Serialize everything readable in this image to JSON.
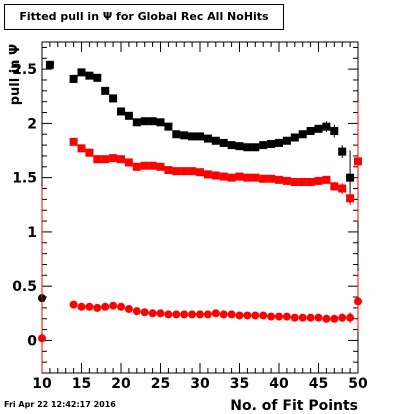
{
  "header": {
    "title": "Fitted pull in  Ψ  for Global Rec All NoHits"
  },
  "footer": {
    "timestamp": "Fri Apr 22 12:42:17 2016"
  },
  "chart_data": {
    "type": "scatter",
    "title": "Fitted pull in  Ψ  for Global Rec All NoHits",
    "xlabel": "No. of Fit Points",
    "ylabel": "pull in Ψ",
    "xlim": [
      10,
      50
    ],
    "ylim": [
      -0.3,
      2.75
    ],
    "xticks": [
      "10",
      "15",
      "20",
      "25",
      "30",
      "35",
      "40",
      "45",
      "50"
    ],
    "yticks": [
      "0",
      "0.5",
      "1",
      "1.5",
      "2",
      "2.5"
    ],
    "grid": false,
    "legend": "none",
    "series": [
      {
        "marker": "square",
        "color": "#000000",
        "points": [
          {
            "x": 11,
            "y": 2.54,
            "err": 0.03
          },
          {
            "x": 14,
            "y": 2.41,
            "err": 0.03
          },
          {
            "x": 15,
            "y": 2.47,
            "err": 0.03
          },
          {
            "x": 16,
            "y": 2.44,
            "err": 0.03
          },
          {
            "x": 17,
            "y": 2.42,
            "err": 0.03
          },
          {
            "x": 18,
            "y": 2.3,
            "err": 0.03
          },
          {
            "x": 19,
            "y": 2.23,
            "err": 0.03
          },
          {
            "x": 20,
            "y": 2.11,
            "err": 0.03
          },
          {
            "x": 21,
            "y": 2.07,
            "err": 0.03
          },
          {
            "x": 22,
            "y": 2.01,
            "err": 0.03
          },
          {
            "x": 23,
            "y": 2.02,
            "err": 0.03
          },
          {
            "x": 24,
            "y": 2.02,
            "err": 0.03
          },
          {
            "x": 25,
            "y": 2.01,
            "err": 0.03
          },
          {
            "x": 26,
            "y": 1.97,
            "err": 0.03
          },
          {
            "x": 27,
            "y": 1.9,
            "err": 0.03
          },
          {
            "x": 28,
            "y": 1.89,
            "err": 0.03
          },
          {
            "x": 29,
            "y": 1.88,
            "err": 0.03
          },
          {
            "x": 30,
            "y": 1.88,
            "err": 0.03
          },
          {
            "x": 31,
            "y": 1.86,
            "err": 0.03
          },
          {
            "x": 32,
            "y": 1.84,
            "err": 0.03
          },
          {
            "x": 33,
            "y": 1.82,
            "err": 0.03
          },
          {
            "x": 34,
            "y": 1.8,
            "err": 0.03
          },
          {
            "x": 35,
            "y": 1.79,
            "err": 0.03
          },
          {
            "x": 36,
            "y": 1.78,
            "err": 0.03
          },
          {
            "x": 37,
            "y": 1.78,
            "err": 0.03
          },
          {
            "x": 38,
            "y": 1.8,
            "err": 0.03
          },
          {
            "x": 39,
            "y": 1.81,
            "err": 0.03
          },
          {
            "x": 40,
            "y": 1.82,
            "err": 0.03
          },
          {
            "x": 41,
            "y": 1.84,
            "err": 0.03
          },
          {
            "x": 42,
            "y": 1.87,
            "err": 0.03
          },
          {
            "x": 43,
            "y": 1.9,
            "err": 0.03
          },
          {
            "x": 44,
            "y": 1.93,
            "err": 0.03
          },
          {
            "x": 45,
            "y": 1.95,
            "err": 0.03
          },
          {
            "x": 46,
            "y": 1.97,
            "err": 0.05
          },
          {
            "x": 47,
            "y": 1.93,
            "err": 0.06
          },
          {
            "x": 48,
            "y": 1.74,
            "err": 0.06
          },
          {
            "x": 49,
            "y": 1.5,
            "err": 0.25
          }
        ]
      },
      {
        "marker": "square",
        "color": "#ff0000",
        "points": [
          {
            "x": 14,
            "y": 1.83,
            "err": 0.02
          },
          {
            "x": 15,
            "y": 1.77,
            "err": 0.02
          },
          {
            "x": 16,
            "y": 1.73,
            "err": 0.02
          },
          {
            "x": 17,
            "y": 1.67,
            "err": 0.02
          },
          {
            "x": 18,
            "y": 1.67,
            "err": 0.02
          },
          {
            "x": 19,
            "y": 1.68,
            "err": 0.02
          },
          {
            "x": 20,
            "y": 1.67,
            "err": 0.02
          },
          {
            "x": 21,
            "y": 1.64,
            "err": 0.02
          },
          {
            "x": 22,
            "y": 1.6,
            "err": 0.02
          },
          {
            "x": 23,
            "y": 1.61,
            "err": 0.02
          },
          {
            "x": 24,
            "y": 1.61,
            "err": 0.02
          },
          {
            "x": 25,
            "y": 1.6,
            "err": 0.02
          },
          {
            "x": 26,
            "y": 1.57,
            "err": 0.02
          },
          {
            "x": 27,
            "y": 1.56,
            "err": 0.02
          },
          {
            "x": 28,
            "y": 1.56,
            "err": 0.02
          },
          {
            "x": 29,
            "y": 1.56,
            "err": 0.02
          },
          {
            "x": 30,
            "y": 1.55,
            "err": 0.02
          },
          {
            "x": 31,
            "y": 1.53,
            "err": 0.02
          },
          {
            "x": 32,
            "y": 1.52,
            "err": 0.02
          },
          {
            "x": 33,
            "y": 1.51,
            "err": 0.02
          },
          {
            "x": 34,
            "y": 1.5,
            "err": 0.02
          },
          {
            "x": 35,
            "y": 1.51,
            "err": 0.02
          },
          {
            "x": 36,
            "y": 1.5,
            "err": 0.02
          },
          {
            "x": 37,
            "y": 1.5,
            "err": 0.02
          },
          {
            "x": 38,
            "y": 1.49,
            "err": 0.02
          },
          {
            "x": 39,
            "y": 1.49,
            "err": 0.02
          },
          {
            "x": 40,
            "y": 1.48,
            "err": 0.02
          },
          {
            "x": 41,
            "y": 1.47,
            "err": 0.02
          },
          {
            "x": 42,
            "y": 1.46,
            "err": 0.02
          },
          {
            "x": 43,
            "y": 1.46,
            "err": 0.02
          },
          {
            "x": 44,
            "y": 1.46,
            "err": 0.02
          },
          {
            "x": 45,
            "y": 1.47,
            "err": 0.02
          },
          {
            "x": 46,
            "y": 1.48,
            "err": 0.03
          },
          {
            "x": 47,
            "y": 1.42,
            "err": 0.04
          },
          {
            "x": 48,
            "y": 1.4,
            "err": 0.05
          },
          {
            "x": 49,
            "y": 1.31,
            "err": 0.06
          },
          {
            "x": 50,
            "y": 1.65,
            "err": 0.55
          }
        ]
      },
      {
        "marker": "circle",
        "color": "#000000",
        "points": [
          {
            "x": 10,
            "y": 0.39,
            "err": 0.0
          }
        ]
      },
      {
        "marker": "circle",
        "color": "#ff0000",
        "points": [
          {
            "x": 10,
            "y": 0.02,
            "err": 1.4
          },
          {
            "x": 14,
            "y": 0.33,
            "err": 0.02
          },
          {
            "x": 15,
            "y": 0.31,
            "err": 0.02
          },
          {
            "x": 16,
            "y": 0.31,
            "err": 0.02
          },
          {
            "x": 17,
            "y": 0.3,
            "err": 0.02
          },
          {
            "x": 18,
            "y": 0.31,
            "err": 0.02
          },
          {
            "x": 19,
            "y": 0.32,
            "err": 0.02
          },
          {
            "x": 20,
            "y": 0.31,
            "err": 0.02
          },
          {
            "x": 21,
            "y": 0.29,
            "err": 0.02
          },
          {
            "x": 22,
            "y": 0.27,
            "err": 0.02
          },
          {
            "x": 23,
            "y": 0.26,
            "err": 0.02
          },
          {
            "x": 24,
            "y": 0.25,
            "err": 0.02
          },
          {
            "x": 25,
            "y": 0.25,
            "err": 0.02
          },
          {
            "x": 26,
            "y": 0.24,
            "err": 0.02
          },
          {
            "x": 27,
            "y": 0.24,
            "err": 0.02
          },
          {
            "x": 28,
            "y": 0.24,
            "err": 0.02
          },
          {
            "x": 29,
            "y": 0.24,
            "err": 0.02
          },
          {
            "x": 30,
            "y": 0.24,
            "err": 0.02
          },
          {
            "x": 31,
            "y": 0.24,
            "err": 0.02
          },
          {
            "x": 32,
            "y": 0.25,
            "err": 0.02
          },
          {
            "x": 33,
            "y": 0.24,
            "err": 0.02
          },
          {
            "x": 34,
            "y": 0.24,
            "err": 0.02
          },
          {
            "x": 35,
            "y": 0.23,
            "err": 0.02
          },
          {
            "x": 36,
            "y": 0.23,
            "err": 0.02
          },
          {
            "x": 37,
            "y": 0.23,
            "err": 0.02
          },
          {
            "x": 38,
            "y": 0.23,
            "err": 0.02
          },
          {
            "x": 39,
            "y": 0.22,
            "err": 0.02
          },
          {
            "x": 40,
            "y": 0.22,
            "err": 0.02
          },
          {
            "x": 41,
            "y": 0.22,
            "err": 0.02
          },
          {
            "x": 42,
            "y": 0.21,
            "err": 0.02
          },
          {
            "x": 43,
            "y": 0.21,
            "err": 0.02
          },
          {
            "x": 44,
            "y": 0.21,
            "err": 0.02
          },
          {
            "x": 45,
            "y": 0.21,
            "err": 0.02
          },
          {
            "x": 46,
            "y": 0.2,
            "err": 0.03
          },
          {
            "x": 47,
            "y": 0.2,
            "err": 0.03
          },
          {
            "x": 48,
            "y": 0.21,
            "err": 0.04
          },
          {
            "x": 49,
            "y": 0.21,
            "err": 0.05
          },
          {
            "x": 50,
            "y": 0.36,
            "err": 0.28
          }
        ]
      }
    ]
  }
}
